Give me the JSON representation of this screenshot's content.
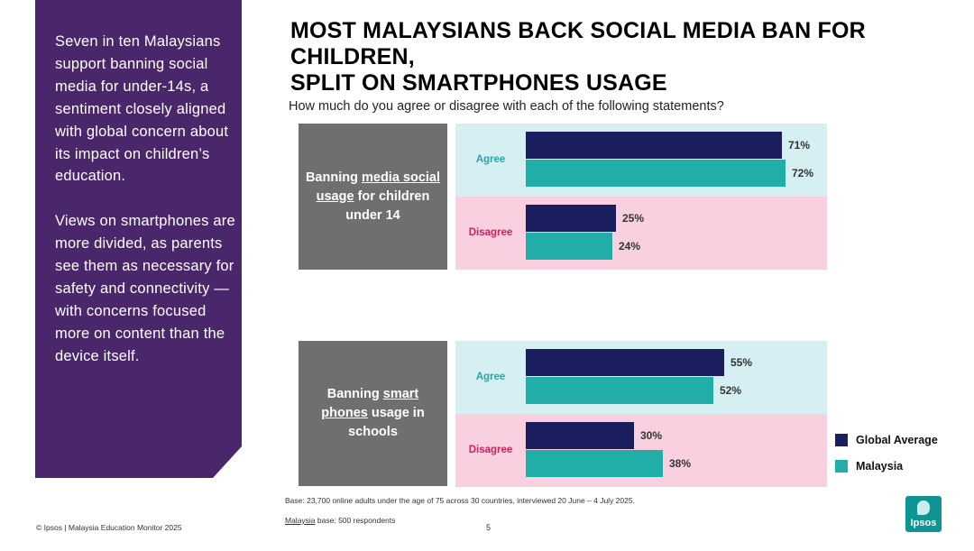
{
  "sidebar": {
    "paragraph1": "Seven in ten Malaysians support banning social media for under-14s, a sentiment closely aligned with global concern about its impact on children’s education.",
    "paragraph2": "Views on smartphones are more divided, as parents see them as necessary for safety and connectivity — with concerns focused more on content than the device itself."
  },
  "title_line1": "MOST MALAYSIANS BACK SOCIAL MEDIA BAN FOR CHILDREN,",
  "title_line2": "SPLIT ON SMARTPHONES USAGE",
  "subtitle": "How much do you agree or disagree with each of the following statements?",
  "statements": [
    {
      "pre": "Banning ",
      "underline": "media social usage",
      "post": " for children under 14"
    },
    {
      "pre": "Banning ",
      "underline": "smart phones",
      "post": " usage in schools"
    }
  ],
  "colors": {
    "global": "#1a1e5e",
    "malaysia": "#21ada8",
    "agree_band": "#d5eff2",
    "disagree_band": "#f8d0e0",
    "sidebar": "#4a266a",
    "statement_box": "#6f6f6f"
  },
  "chart_data": {
    "type": "bar",
    "orientation": "horizontal",
    "title": "MOST MALAYSIANS BACK SOCIAL MEDIA BAN FOR CHILDREN, SPLIT ON SMARTPHONES USAGE",
    "xlim": [
      0,
      100
    ],
    "unit": "%",
    "series_names": [
      "Global Average",
      "Malaysia"
    ],
    "groups": [
      {
        "statement": "Banning media social usage for children under 14",
        "categories": [
          {
            "label": "Agree",
            "global": 71,
            "malaysia": 72,
            "global_label": "71%",
            "malaysia_label": "72%"
          },
          {
            "label": "Disagree",
            "global": 25,
            "malaysia": 24,
            "global_label": "25%",
            "malaysia_label": "24%"
          }
        ]
      },
      {
        "statement": "Banning smart phones usage in schools",
        "categories": [
          {
            "label": "Agree",
            "global": 55,
            "malaysia": 52,
            "global_label": "55%",
            "malaysia_label": "52%"
          },
          {
            "label": "Disagree",
            "global": 30,
            "malaysia": 38,
            "global_label": "30%",
            "malaysia_label": "38%"
          }
        ]
      }
    ]
  },
  "legend": [
    {
      "label": "Global Average",
      "color": "#1a1e5e"
    },
    {
      "label": "Malaysia",
      "color": "#21ada8"
    }
  ],
  "footer": {
    "base_note": "Base: 23,700 online adults under the age of 75 across 30 countries, interviewed 20 June – 4 July 2025.",
    "malaysia_base_prefix": "Malaysia",
    "malaysia_base_suffix": " base: 500 respondents",
    "source": "© Ipsos | Malaysia Education Monitor 2025",
    "page_number": "5",
    "logo_text": "Ipsos"
  }
}
